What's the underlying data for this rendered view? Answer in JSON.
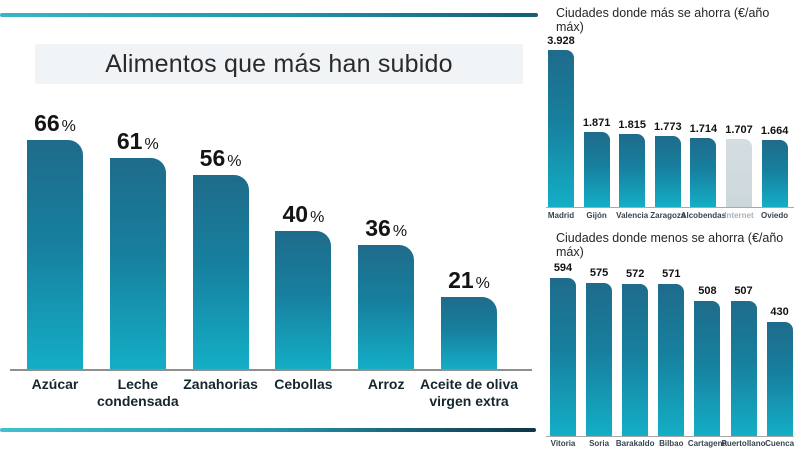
{
  "colors": {
    "bar_gradient_top": "#1f6b8b",
    "bar_gradient_bottom": "#14aec6",
    "highlight_bar": "#cfd9de",
    "highlight_label": "#a8b2b8",
    "rule_teal": "#3ab5c6",
    "rule_dark": "#0d3547",
    "title_band_bg": "#f1f4f6"
  },
  "chart_data": [
    {
      "id": "food-price-increase",
      "type": "bar",
      "title": "Alimentos que más han subido",
      "categories": [
        "Azúcar",
        "Leche\ncondensada",
        "Zanahorias",
        "Cebollas",
        "Arroz",
        "Aceite de oliva\nvirgen extra"
      ],
      "values": [
        66,
        61,
        56,
        40,
        36,
        21
      ],
      "value_labels": [
        "66",
        "61",
        "56",
        "40",
        "36",
        "21"
      ],
      "unit": "%",
      "xlabel": "",
      "ylabel": "",
      "ylim": [
        0,
        70
      ],
      "grid": false,
      "legend": "none"
    },
    {
      "id": "cities-most-savings",
      "type": "bar",
      "title": "Ciudades donde más se ahorra (€/año máx)",
      "categories": [
        "Madrid",
        "Gijón",
        "Valencia",
        "Zaragoza",
        "Alcobendas",
        "Internet",
        "Oviedo"
      ],
      "values": [
        3928,
        1871,
        1815,
        1773,
        1714,
        1707,
        1664
      ],
      "value_labels": [
        "3.928",
        "1.871",
        "1.815",
        "1.773",
        "1.714",
        "1.707",
        "1.664"
      ],
      "unit": "€/año",
      "highlight_index": 5,
      "xlabel": "",
      "ylabel": "",
      "ylim": [
        0,
        4000
      ],
      "grid": false,
      "legend": "none"
    },
    {
      "id": "cities-least-savings",
      "type": "bar",
      "title": "Ciudades donde menos se ahorra (€/año máx)",
      "categories": [
        "Vitoria",
        "Soria",
        "Barakaldo",
        "Bilbao",
        "Cartagena",
        "Puertollano",
        "Cuenca"
      ],
      "values": [
        594,
        575,
        572,
        571,
        508,
        507,
        430
      ],
      "value_labels": [
        "594",
        "575",
        "572",
        "571",
        "508",
        "507",
        "430"
      ],
      "unit": "€/año",
      "xlabel": "",
      "ylabel": "",
      "ylim": [
        0,
        620
      ],
      "grid": false,
      "legend": "none"
    }
  ]
}
